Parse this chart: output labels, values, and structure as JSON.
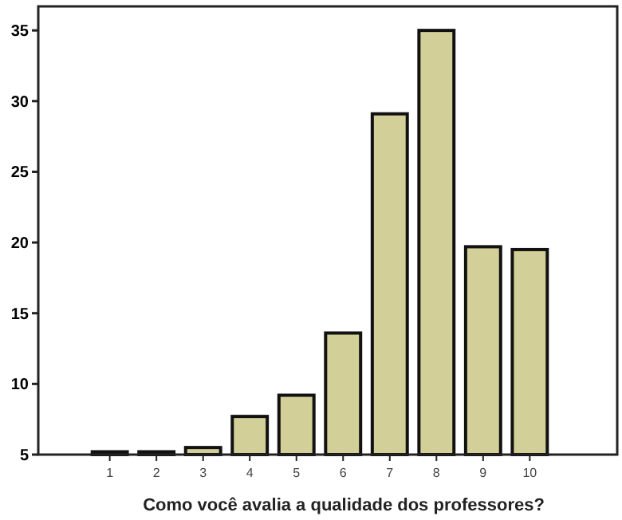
{
  "chart_data": {
    "type": "bar",
    "xlabel": "Como você avalia a qualidade dos professores?",
    "categories": [
      "1",
      "2",
      "3",
      "4",
      "5",
      "6",
      "7",
      "8",
      "9",
      "10"
    ],
    "values": [
      5.2,
      5.2,
      5.5,
      7.7,
      9.2,
      13.6,
      29.1,
      35.0,
      19.7,
      19.5
    ],
    "color": "#d3cf98",
    "ylim": [
      5,
      36.7
    ],
    "yticks": [
      5,
      10,
      15,
      20,
      25,
      30,
      35
    ],
    "grid": false
  }
}
